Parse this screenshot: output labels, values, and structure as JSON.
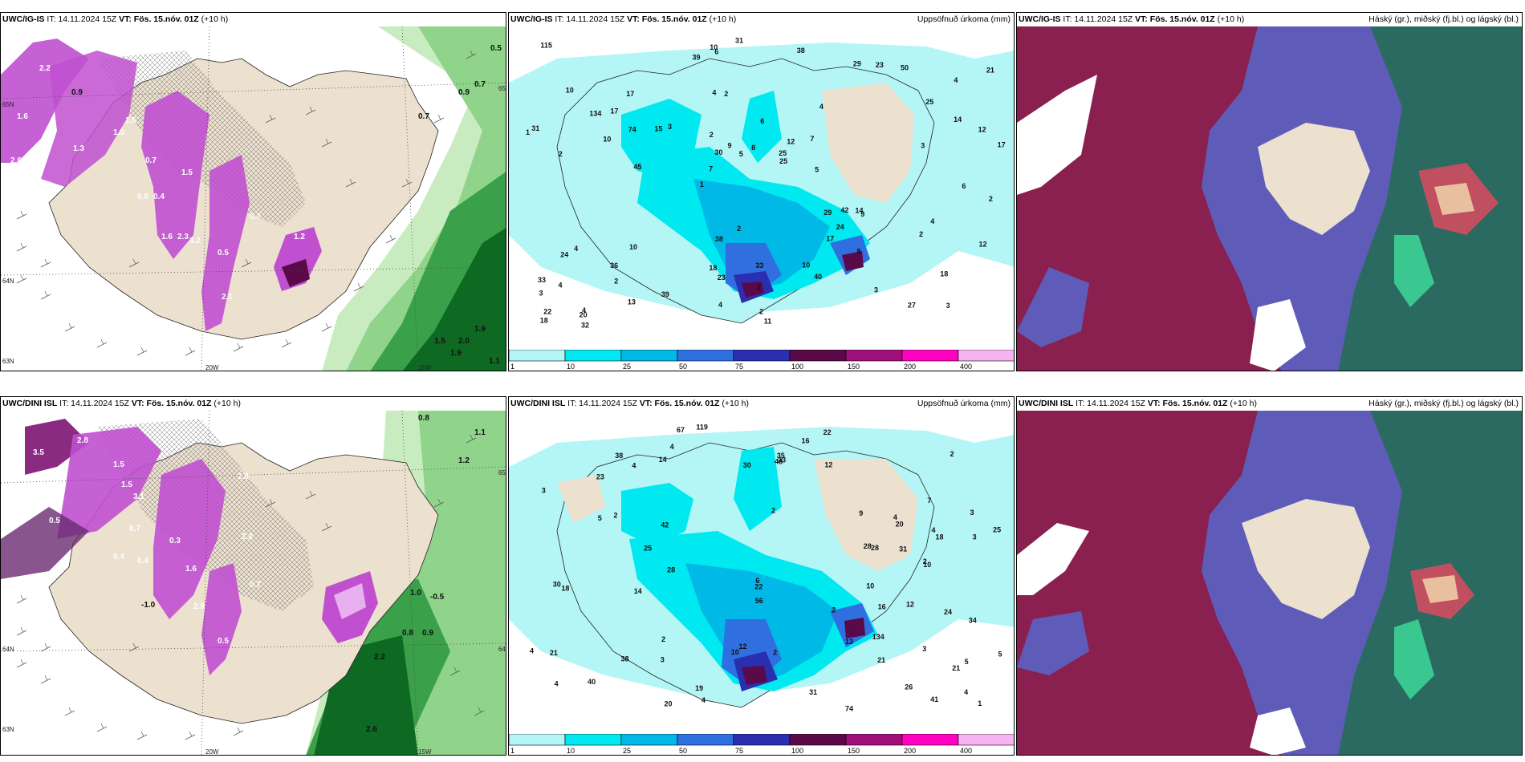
{
  "panels": [
    {
      "model": "UWC/IG-IS",
      "it": "IT: 14.11.2024 15Z",
      "vt": "VT: Fös. 15.nóv. 01Z",
      "lead": "(+10 h)",
      "right": ""
    },
    {
      "model": "UWC/IG-IS",
      "it": "IT: 14.11.2024 15Z",
      "vt": "VT: Fös. 15.nóv. 01Z",
      "lead": "(+10 h)",
      "right": "Uppsöfnuð úrkoma (mm)"
    },
    {
      "model": "UWC/IG-IS",
      "it": "IT: 14.11.2024 15Z",
      "vt": "VT: Fös. 15.nóv. 01Z",
      "lead": "(+10 h)",
      "right": "Háský (gr.), miðský (fj.bl.) og lágský (bl.)"
    },
    {
      "model": "UWC/DINI ISL",
      "it": "IT: 14.11.2024 15Z",
      "vt": "VT: Fös. 15.nóv. 01Z",
      "lead": "(+10 h)",
      "right": ""
    },
    {
      "model": "UWC/DINI ISL",
      "it": "IT: 14.11.2024 15Z",
      "vt": "VT: Fös. 15.nóv. 01Z",
      "lead": "(+10 h)",
      "right": "Uppsöfnuð úrkoma (mm)"
    },
    {
      "model": "UWC/DINI ISL",
      "it": "IT: 14.11.2024 15Z",
      "vt": "VT: Fös. 15.nóv. 01Z",
      "lead": "(+10 h)",
      "right": "Háský (gr.), miðský (fj.bl.) og lágský (bl.)"
    }
  ],
  "axis_labels": {
    "lon_20w": "20W",
    "lon_15w": "15W",
    "lat_65n": "65N",
    "lat_64n": "64N",
    "lat_63n": "63N"
  },
  "colorbar": {
    "labels": [
      "1",
      "10",
      "25",
      "50",
      "75",
      "100",
      "150",
      "200",
      "400"
    ],
    "colors": [
      "#b4f5f5",
      "#00e8f0",
      "#00b9e6",
      "#2f6fe0",
      "#2a2fb0",
      "#5a0a48",
      "#a0107a",
      "#ff00c0",
      "#f5b4f0"
    ]
  },
  "precip_values_top": [
    "3",
    "2",
    "4",
    "1",
    "4",
    "4",
    "4",
    "6",
    "4",
    "3",
    "3",
    "2",
    "2",
    "12",
    "9",
    "10",
    "6",
    "17",
    "29",
    "14",
    "7",
    "18",
    "30",
    "17",
    "29",
    "10",
    "27",
    "18",
    "14",
    "11",
    "15",
    "10",
    "17",
    "13",
    "12",
    "25",
    "22",
    "23",
    "25",
    "24",
    "25",
    "21",
    "24",
    "40",
    "36",
    "32",
    "18",
    "33",
    "50",
    "31",
    "45",
    "31",
    "17",
    "23",
    "20",
    "38",
    "39",
    "9",
    "12",
    "38",
    "39",
    "42",
    "74",
    "33",
    "115",
    "134",
    "2",
    "2",
    "2",
    "8",
    "4",
    "5",
    "4",
    "4",
    "3",
    "2",
    "3",
    "2",
    "10",
    "10",
    "6",
    "7",
    "8",
    "5",
    "2",
    "1"
  ],
  "precip_values_bottom": [
    "3",
    "3",
    "5",
    "2",
    "4",
    "4",
    "4",
    "3",
    "2",
    "2",
    "3",
    "3",
    "2",
    "4",
    "21",
    "23",
    "21",
    "14",
    "12",
    "18",
    "30",
    "18",
    "31",
    "28",
    "19",
    "10",
    "16",
    "12",
    "9",
    "5",
    "14",
    "21",
    "20",
    "22",
    "24",
    "26",
    "28",
    "30",
    "41",
    "28",
    "12",
    "31",
    "48",
    "25",
    "34",
    "16",
    "40",
    "22",
    "42",
    "20",
    "38",
    "56",
    "33",
    "25",
    "13",
    "10",
    "67",
    "38",
    "74",
    "35",
    "119",
    "134",
    "1",
    "2",
    "4",
    "4",
    "4",
    "6",
    "4",
    "5",
    "7",
    "10",
    "2",
    "2"
  ],
  "field_values_top": [
    "2.2",
    "1.6",
    "0.9",
    "1.5",
    "1.5",
    "1.3",
    "2.6",
    "1.3",
    "0.7",
    "0.5",
    "0.7",
    "0.9",
    "0.7",
    "1.5",
    "0.6",
    "0.4",
    "1.6",
    "3.2",
    "2.3",
    "0.7",
    "1.2",
    "0.5",
    "2.1",
    "1.9",
    "1.5",
    "2.0",
    "1.9",
    "1.1"
  ],
  "field_values_bottom": [
    "2.1",
    "2.8",
    "3.5",
    "1.5",
    "1.5",
    "2.0",
    "0.5",
    "0.8",
    "1.5",
    "3.1",
    "0.7",
    "0.3",
    "1.6",
    "2.9",
    "-1.0",
    "0.4",
    "0.4",
    "0.5",
    "2.2",
    "0.7",
    "1.0",
    "-0.5",
    "0.8",
    "0.9",
    "2.2",
    "2.6",
    "1.2",
    "1.1"
  ]
}
